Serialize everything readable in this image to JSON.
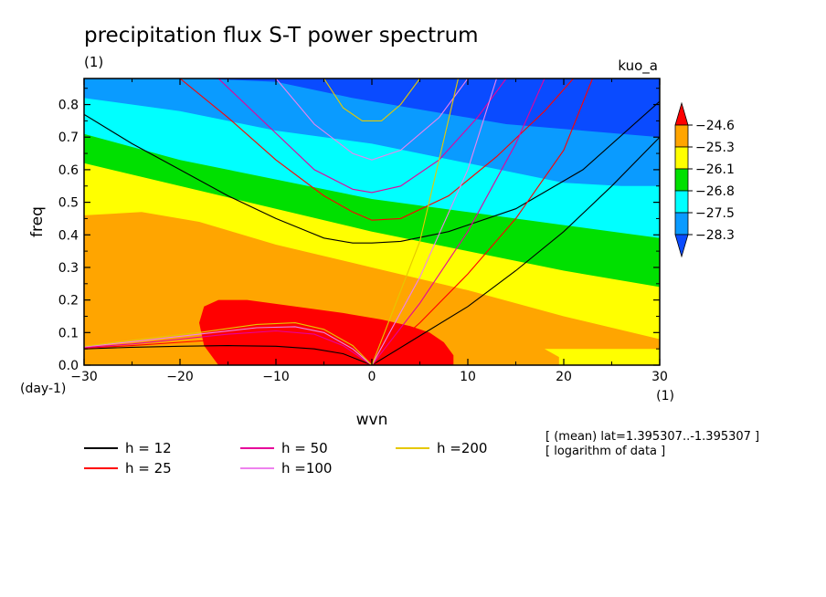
{
  "chart_data": {
    "type": "heatmap",
    "title": "precipitation flux S-T power spectrum",
    "units_label": "(1)",
    "model_label": "kuo_a",
    "xlabel": "wvn",
    "ylabel": "freq",
    "x_units": "(1)",
    "y_units": "(day-1)",
    "xlim": [
      -30,
      30
    ],
    "ylim": [
      0,
      0.88
    ],
    "x_ticks": [
      -30,
      -20,
      -10,
      0,
      10,
      20,
      30
    ],
    "x_tick_labels": [
      "−30",
      "−20",
      "−10",
      "0",
      "10",
      "20",
      "30"
    ],
    "y_ticks": [
      0.0,
      0.1,
      0.2,
      0.3,
      0.4,
      0.5,
      0.6,
      0.7,
      0.8
    ],
    "y_tick_labels": [
      "0.0",
      "0.1",
      "0.2",
      "0.3",
      "0.4",
      "0.5",
      "0.6",
      "0.7",
      "0.8"
    ],
    "colorbar": {
      "levels": [
        -24.6,
        -25.3,
        -26.1,
        -26.8,
        -27.5,
        -28.3
      ],
      "level_labels": [
        "−24.6",
        "−25.3",
        "−26.1",
        "−26.8",
        "−27.5",
        "−28.3"
      ],
      "colors": [
        "#ff0000",
        "#ffa500",
        "#ffff00",
        "#00e000",
        "#00ffff",
        "#0a9bff",
        "#0a4bff"
      ]
    },
    "bands": [
      {
        "name": "below -28.3",
        "color": "#0a4bff",
        "upper": [
          [
            -30,
            0.88
          ],
          [
            30,
            0.88
          ]
        ]
      },
      {
        "name": "-28.3 to -27.5",
        "color": "#0a9bff",
        "upper": [
          [
            -30,
            0.88
          ],
          [
            -18,
            0.88
          ],
          [
            -10,
            0.87
          ],
          [
            -2,
            0.82
          ],
          [
            6,
            0.78
          ],
          [
            14,
            0.74
          ],
          [
            22,
            0.72
          ],
          [
            30,
            0.7
          ]
        ]
      },
      {
        "name": "-27.5 to -26.8",
        "color": "#00ffff",
        "upper": [
          [
            -30,
            0.82
          ],
          [
            -20,
            0.78
          ],
          [
            -10,
            0.72
          ],
          [
            0,
            0.68
          ],
          [
            10,
            0.62
          ],
          [
            20,
            0.56
          ],
          [
            26,
            0.55
          ],
          [
            30,
            0.55
          ]
        ]
      },
      {
        "name": "-26.8 to -26.1",
        "color": "#00e000",
        "upper": [
          [
            -30,
            0.71
          ],
          [
            -20,
            0.63
          ],
          [
            -10,
            0.57
          ],
          [
            0,
            0.51
          ],
          [
            10,
            0.47
          ],
          [
            20,
            0.43
          ],
          [
            30,
            0.39
          ]
        ]
      },
      {
        "name": "-26.1 to -25.3",
        "color": "#ffff00",
        "upper": [
          [
            -30,
            0.62
          ],
          [
            -20,
            0.55
          ],
          [
            -10,
            0.48
          ],
          [
            0,
            0.41
          ],
          [
            10,
            0.35
          ],
          [
            20,
            0.29
          ],
          [
            30,
            0.24
          ]
        ]
      },
      {
        "name": "-25.3 to -24.6",
        "color": "#ffa500",
        "upper": [
          [
            -30,
            0.46
          ],
          [
            -24,
            0.47
          ],
          [
            -18,
            0.44
          ],
          [
            -10,
            0.37
          ],
          [
            0,
            0.3
          ],
          [
            10,
            0.23
          ],
          [
            20,
            0.15
          ],
          [
            30,
            0.08
          ]
        ]
      },
      {
        "name": "above -24.6",
        "color": "#ff0000",
        "closed": [
          [
            -18,
            0.13
          ],
          [
            -17.5,
            0.18
          ],
          [
            -16,
            0.2
          ],
          [
            -13,
            0.2
          ],
          [
            -8,
            0.18
          ],
          [
            -3,
            0.16
          ],
          [
            1,
            0.14
          ],
          [
            4,
            0.12
          ],
          [
            6,
            0.1
          ],
          [
            7.5,
            0.07
          ],
          [
            8.5,
            0.03
          ],
          [
            8.5,
            0.0
          ],
          [
            -16,
            0.0
          ],
          [
            -17.5,
            0.06
          ],
          [
            -18,
            0.13
          ]
        ]
      },
      {
        "name": "fringe",
        "color": "#ffa500",
        "closed": [
          [
            -30,
            0.0
          ],
          [
            -30,
            0.05
          ],
          [
            -24,
            0.06
          ],
          [
            -18,
            0.07
          ],
          [
            -16,
            0.0
          ]
        ]
      },
      {
        "name": "fringe2",
        "color": "#ffff00",
        "closed": [
          [
            19.5,
            0.0
          ],
          [
            19.5,
            0.025
          ],
          [
            18,
            0.05
          ],
          [
            30,
            0.05
          ],
          [
            30,
            0.0
          ]
        ]
      }
    ],
    "legend": [
      {
        "label": "h = 12",
        "color": "#000000"
      },
      {
        "label": "h = 25",
        "color": "#ff0000"
      },
      {
        "label": "h = 50",
        "color": "#e6009a"
      },
      {
        "label": "h =100",
        "color": "#ee82ee"
      },
      {
        "label": "h =200",
        "color": "#e6c800"
      }
    ],
    "dispersion_curves": [
      {
        "h": 12,
        "color": "#000000",
        "points": [
          [
            -30,
            0.77
          ],
          [
            -25,
            0.68
          ],
          [
            -20,
            0.6
          ],
          [
            -15,
            0.52
          ],
          [
            -10,
            0.45
          ],
          [
            -5,
            0.39
          ],
          [
            -2,
            0.375
          ],
          [
            0,
            0.375
          ],
          [
            3,
            0.38
          ],
          [
            8,
            0.41
          ],
          [
            15,
            0.48
          ],
          [
            22,
            0.6
          ],
          [
            30,
            0.81
          ]
        ]
      },
      {
        "h": 25,
        "color": "#ff0000",
        "points": [
          [
            -20,
            0.88
          ],
          [
            -15,
            0.76
          ],
          [
            -10,
            0.63
          ],
          [
            -5,
            0.52
          ],
          [
            -2,
            0.47
          ],
          [
            0,
            0.445
          ],
          [
            3,
            0.45
          ],
          [
            8,
            0.52
          ],
          [
            13,
            0.64
          ],
          [
            18,
            0.78
          ],
          [
            21,
            0.88
          ]
        ]
      },
      {
        "h": 50,
        "color": "#e6009a",
        "points": [
          [
            -16,
            0.88
          ],
          [
            -11,
            0.74
          ],
          [
            -6,
            0.6
          ],
          [
            -2,
            0.54
          ],
          [
            0,
            0.53
          ],
          [
            3,
            0.55
          ],
          [
            7,
            0.63
          ],
          [
            11,
            0.76
          ],
          [
            14,
            0.88
          ]
        ]
      },
      {
        "h": 100,
        "color": "#ee82ee",
        "points": [
          [
            -10,
            0.88
          ],
          [
            -6,
            0.74
          ],
          [
            -2,
            0.65
          ],
          [
            0,
            0.63
          ],
          [
            3,
            0.66
          ],
          [
            7,
            0.76
          ],
          [
            10,
            0.88
          ]
        ]
      },
      {
        "h": 200,
        "color": "#e6c800",
        "points": [
          [
            -5,
            0.88
          ],
          [
            -3,
            0.79
          ],
          [
            -1,
            0.75
          ],
          [
            1,
            0.75
          ],
          [
            3,
            0.8
          ],
          [
            5,
            0.88
          ]
        ]
      },
      {
        "h": 12,
        "color": "#000000",
        "points": [
          [
            0,
            0.0
          ],
          [
            5,
            0.09
          ],
          [
            10,
            0.18
          ],
          [
            15,
            0.29
          ],
          [
            20,
            0.41
          ],
          [
            25,
            0.55
          ],
          [
            30,
            0.7
          ]
        ]
      },
      {
        "h": 25,
        "color": "#ff0000",
        "points": [
          [
            0,
            0.0
          ],
          [
            5,
            0.13
          ],
          [
            10,
            0.28
          ],
          [
            15,
            0.45
          ],
          [
            20,
            0.66
          ],
          [
            23,
            0.88
          ]
        ]
      },
      {
        "h": 50,
        "color": "#e6009a",
        "points": [
          [
            0,
            0.0
          ],
          [
            5,
            0.19
          ],
          [
            10,
            0.41
          ],
          [
            15,
            0.68
          ],
          [
            18,
            0.88
          ]
        ]
      },
      {
        "h": 100,
        "color": "#ee82ee",
        "points": [
          [
            0,
            0.0
          ],
          [
            5,
            0.27
          ],
          [
            10,
            0.6
          ],
          [
            13,
            0.88
          ]
        ]
      },
      {
        "h": 200,
        "color": "#e6c800",
        "points": [
          [
            0,
            0.0
          ],
          [
            5,
            0.38
          ],
          [
            9,
            0.88
          ]
        ]
      },
      {
        "h": 12,
        "color": "#000000",
        "points": [
          [
            -30,
            0.05
          ],
          [
            -25,
            0.055
          ],
          [
            -20,
            0.058
          ],
          [
            -15,
            0.06
          ],
          [
            -10,
            0.058
          ],
          [
            -6,
            0.05
          ],
          [
            -3,
            0.035
          ],
          [
            0,
            0.0
          ]
        ]
      },
      {
        "h": 25,
        "color": "#ff0000",
        "points": [
          [
            -30,
            0.052
          ],
          [
            -25,
            0.06
          ],
          [
            -20,
            0.07
          ],
          [
            -15,
            0.08
          ],
          [
            -10,
            0.085
          ],
          [
            -6,
            0.075
          ],
          [
            -3,
            0.05
          ],
          [
            0,
            0.0
          ]
        ]
      },
      {
        "h": 50,
        "color": "#e6009a",
        "points": [
          [
            -30,
            0.054
          ],
          [
            -25,
            0.065
          ],
          [
            -20,
            0.08
          ],
          [
            -15,
            0.095
          ],
          [
            -10,
            0.105
          ],
          [
            -6,
            0.095
          ],
          [
            -3,
            0.06
          ],
          [
            0,
            0.0
          ]
        ]
      },
      {
        "h": 100,
        "color": "#ee82ee",
        "points": [
          [
            -30,
            0.056
          ],
          [
            -24,
            0.075
          ],
          [
            -18,
            0.095
          ],
          [
            -12,
            0.115
          ],
          [
            -8,
            0.118
          ],
          [
            -5,
            0.1
          ],
          [
            -2,
            0.05
          ],
          [
            0,
            0.0
          ]
        ]
      },
      {
        "h": 200,
        "color": "#e6c800",
        "points": [
          [
            -30,
            0.058
          ],
          [
            -24,
            0.08
          ],
          [
            -18,
            0.1
          ],
          [
            -12,
            0.125
          ],
          [
            -8,
            0.13
          ],
          [
            -5,
            0.11
          ],
          [
            -2,
            0.06
          ],
          [
            0,
            0.0
          ]
        ]
      }
    ],
    "annotations": [
      "[ (mean) lat=1.395307..-1.395307 ]",
      "[ logarithm of data ]"
    ]
  }
}
